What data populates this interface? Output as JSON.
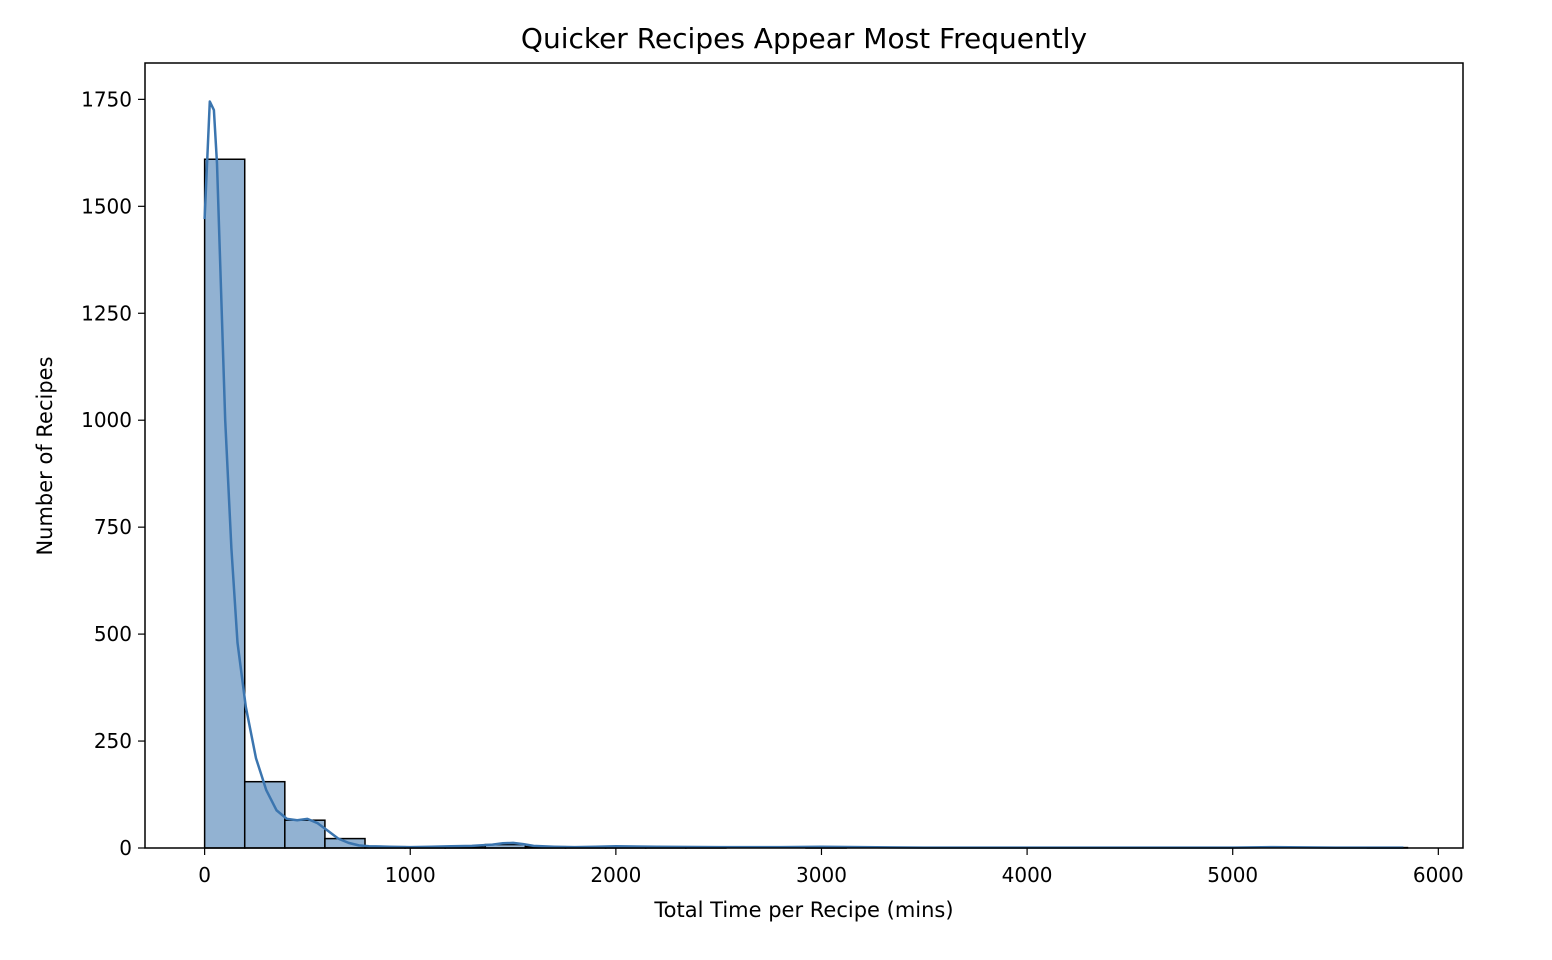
{
  "chart_data": {
    "type": "bar",
    "title": "Quicker Recipes Appear Most Frequently",
    "xlabel": "Total Time per Recipe (mins)",
    "ylabel": "Number of Recipes",
    "xlim": [
      -290,
      6120
    ],
    "ylim": [
      0,
      1835
    ],
    "xticks": [
      0,
      1000,
      2000,
      3000,
      4000,
      5000,
      6000
    ],
    "yticks": [
      0,
      250,
      500,
      750,
      1000,
      1250,
      1500,
      1750
    ],
    "grid": false,
    "bins": {
      "start": 0,
      "width": 195,
      "counts": [
        1610,
        155,
        65,
        22,
        3,
        2,
        2,
        8,
        3,
        1,
        1,
        1,
        1,
        0,
        0,
        1,
        0,
        0,
        0,
        0,
        0,
        0,
        0,
        0,
        0,
        0,
        0,
        0,
        0,
        1
      ]
    },
    "kde": {
      "x": [
        0,
        25,
        45,
        60,
        80,
        100,
        130,
        160,
        200,
        250,
        300,
        350,
        400,
        450,
        500,
        550,
        600,
        650,
        700,
        750,
        800,
        900,
        1000,
        1100,
        1200,
        1300,
        1400,
        1450,
        1500,
        1550,
        1600,
        1700,
        1800,
        1900,
        2000,
        2200,
        2500,
        2800,
        3000,
        3200,
        3500,
        4000,
        4500,
        5000,
        5200,
        5500,
        5830
      ],
      "y": [
        1470,
        1745,
        1725,
        1600,
        1300,
        1000,
        700,
        480,
        330,
        210,
        135,
        88,
        68,
        65,
        68,
        58,
        40,
        22,
        12,
        6,
        4,
        3,
        2,
        3,
        4,
        5,
        8,
        11,
        12,
        9,
        5,
        3,
        2,
        3,
        4,
        3,
        2,
        2,
        3,
        2,
        1,
        1,
        1,
        1,
        2,
        1,
        1
      ]
    },
    "colors": {
      "bar_fill": "#92b2d2",
      "bar_edge": "#000000",
      "kde_line": "#3b75af",
      "axis": "#000000"
    }
  }
}
